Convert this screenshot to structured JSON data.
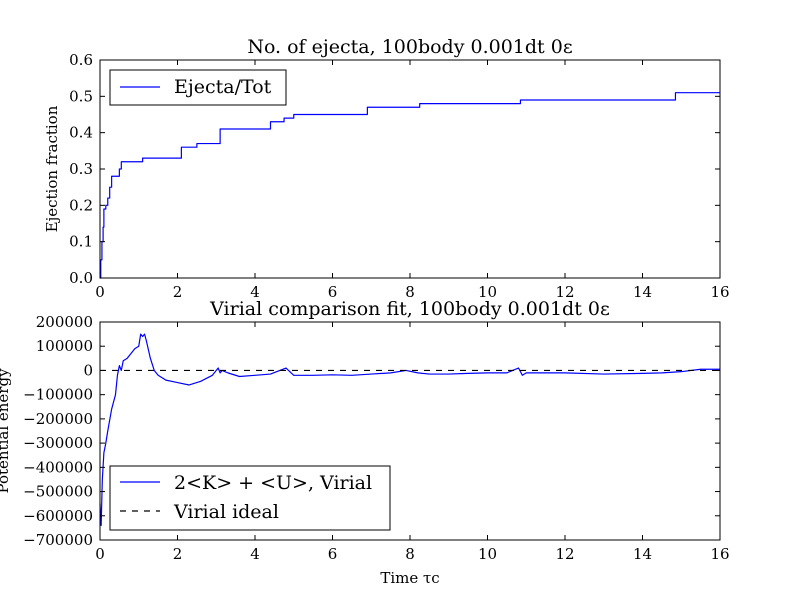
{
  "chart_data": [
    {
      "type": "line",
      "title": "No. of ejecta, 100body 0.001dt 0ε",
      "xlabel": "",
      "ylabel": "Ejection fraction",
      "xlim": [
        0,
        16
      ],
      "ylim": [
        0,
        0.6
      ],
      "xticks": [
        "0",
        "2",
        "4",
        "6",
        "8",
        "10",
        "12",
        "14",
        "16"
      ],
      "yticks": [
        "0.0",
        "0.1",
        "0.2",
        "0.3",
        "0.4",
        "0.5",
        "0.6"
      ],
      "legend_position": "top-left",
      "grid": false,
      "series": [
        {
          "name": "Ejecta/Tot",
          "color": "#0000ff",
          "style": "solid",
          "step": true,
          "x": [
            0,
            0.02,
            0.05,
            0.08,
            0.1,
            0.15,
            0.2,
            0.25,
            0.3,
            0.5,
            0.55,
            1.1,
            2.1,
            2.5,
            3.1,
            4.4,
            4.75,
            5.0,
            6.9,
            8.25,
            10.85,
            14.85,
            16
          ],
          "y": [
            0,
            0.05,
            0.1,
            0.14,
            0.19,
            0.2,
            0.22,
            0.25,
            0.28,
            0.3,
            0.32,
            0.33,
            0.36,
            0.37,
            0.41,
            0.43,
            0.44,
            0.45,
            0.47,
            0.48,
            0.49,
            0.51,
            0.51
          ]
        }
      ]
    },
    {
      "type": "line",
      "title": "Virial comparison fit, 100body 0.001dt 0ε",
      "xlabel": "Time τc",
      "ylabel": "Potential energy",
      "xlim": [
        0,
        16
      ],
      "ylim": [
        -700000,
        200000
      ],
      "xticks": [
        "0",
        "2",
        "4",
        "6",
        "8",
        "10",
        "12",
        "14",
        "16"
      ],
      "yticks": [
        "200000",
        "100000",
        "0",
        "−100000",
        "−200000",
        "−300000",
        "−400000",
        "−500000",
        "−600000",
        "−700000"
      ],
      "legend_position": "bottom-left",
      "grid": false,
      "series": [
        {
          "name": "2<K> + <U>, Virial",
          "color": "#0000ff",
          "style": "solid",
          "x": [
            0,
            0.03,
            0.06,
            0.1,
            0.15,
            0.2,
            0.3,
            0.4,
            0.45,
            0.5,
            0.55,
            0.6,
            0.7,
            0.8,
            0.9,
            1.0,
            1.05,
            1.1,
            1.15,
            1.2,
            1.3,
            1.4,
            1.5,
            1.7,
            2.0,
            2.3,
            2.6,
            2.9,
            3.05,
            3.1,
            3.15,
            3.3,
            3.6,
            4.0,
            4.4,
            4.8,
            5.0,
            5.5,
            6.0,
            6.5,
            7.0,
            7.5,
            7.9,
            8.2,
            8.5,
            9.0,
            9.5,
            10.0,
            10.5,
            10.8,
            10.9,
            11.0,
            11.5,
            12.0,
            13.0,
            14.0,
            14.5,
            15.0,
            15.5,
            16.0
          ],
          "y": [
            -550000,
            -640000,
            -450000,
            -340000,
            -300000,
            -250000,
            -160000,
            -100000,
            -20000,
            20000,
            0,
            40000,
            50000,
            70000,
            90000,
            100000,
            150000,
            140000,
            150000,
            120000,
            50000,
            0,
            -20000,
            -40000,
            -50000,
            -60000,
            -45000,
            -20000,
            10000,
            -10000,
            0,
            -10000,
            -25000,
            -20000,
            -15000,
            10000,
            -20000,
            -20000,
            -18000,
            -20000,
            -15000,
            -10000,
            0,
            -10000,
            -15000,
            -15000,
            -12000,
            -10000,
            -10000,
            10000,
            -20000,
            -10000,
            -10000,
            -10000,
            -15000,
            -12000,
            -10000,
            -5000,
            5000,
            5000
          ]
        },
        {
          "name": "Virial ideal",
          "color": "#000000",
          "style": "dashed",
          "x": [
            0,
            16
          ],
          "y": [
            0,
            0
          ]
        }
      ]
    }
  ]
}
